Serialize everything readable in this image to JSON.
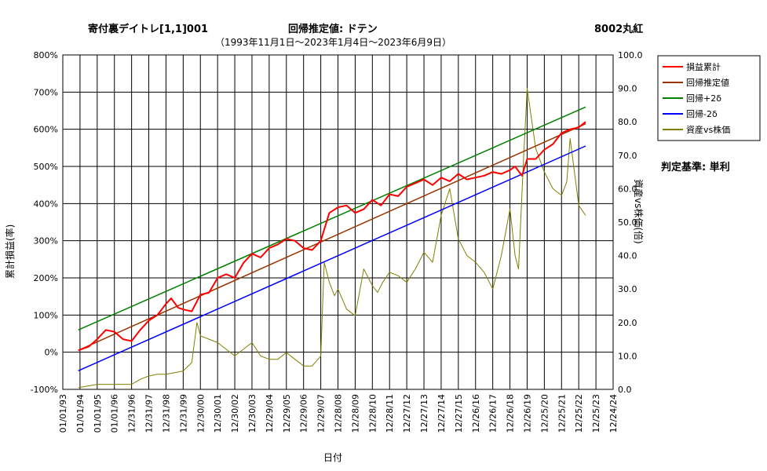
{
  "header": {
    "title_left": "寄付裏デイトレ[1,1]001",
    "title_mid": "回帰推定値: ドテン",
    "title_right": "8002丸紅",
    "subtitle": "（1993年11月1日〜2023年1月4日〜2023年6月9日）",
    "criteria": "判定基準: 単利"
  },
  "chart_data": {
    "type": "line",
    "xlabel": "日付",
    "ylabel_left": "累計損益(率)",
    "ylabel_right": "資産vs株価(倍)",
    "y_left_range": [
      -100,
      800
    ],
    "y_right_range": [
      0,
      100
    ],
    "y_left_ticks": [
      "800%",
      "700%",
      "600%",
      "500%",
      "400%",
      "300%",
      "200%",
      "100%",
      "0%",
      "-100%"
    ],
    "y_right_ticks": [
      "100.0",
      "90.0",
      "80.0",
      "70.0",
      "60.0",
      "50.0",
      "40.0",
      "30.0",
      "20.0",
      "10.0",
      "0.0"
    ],
    "x_ticks": [
      "01/01/93",
      "01/01/94",
      "01/01/95",
      "01/01/96",
      "12/31/96",
      "12/31/97",
      "12/31/98",
      "12/31/99",
      "12/30/00",
      "12/30/01",
      "12/30/02",
      "12/30/03",
      "12/29/04",
      "12/29/05",
      "12/29/06",
      "12/29/07",
      "12/28/08",
      "12/28/09",
      "12/28/10",
      "12/28/11",
      "12/27/12",
      "12/27/13",
      "12/27/14",
      "12/27/15",
      "12/26/16",
      "12/26/17",
      "12/26/18",
      "12/26/19",
      "12/25/20",
      "12/25/21",
      "12/25/22",
      "12/25/23",
      "12/24/24"
    ],
    "legend": {
      "position": "right",
      "items": [
        {
          "name": "損益累計",
          "color": "#ff0000"
        },
        {
          "name": "回帰推定値",
          "color": "#993300"
        },
        {
          "name": "回帰+2δ",
          "color": "#008000"
        },
        {
          "name": "回帰-2δ",
          "color": "#0000ff"
        },
        {
          "name": "資産vs株価",
          "color": "#808000"
        }
      ]
    },
    "grid": true,
    "series": [
      {
        "name": "損益累計",
        "axis": "left",
        "color": "#ff0000",
        "x": [
          1993.9,
          1994.5,
          1995.0,
          1995.5,
          1996.0,
          1996.5,
          1997.0,
          1997.5,
          1998.0,
          1998.5,
          1999.0,
          1999.3,
          1999.7,
          2000.0,
          2000.5,
          2001.0,
          2001.5,
          2002.0,
          2002.5,
          2003.0,
          2003.5,
          2004.0,
          2004.5,
          2005.0,
          2005.5,
          2006.0,
          2006.5,
          2007.0,
          2007.5,
          2008.0,
          2008.5,
          2009.0,
          2009.5,
          2010.0,
          2010.5,
          2011.0,
          2011.5,
          2012.0,
          2012.5,
          2013.0,
          2013.5,
          2014.0,
          2014.5,
          2015.0,
          2015.5,
          2016.0,
          2016.5,
          2017.0,
          2017.5,
          2018.0,
          2018.5,
          2019.0,
          2019.3,
          2019.7,
          2020.0,
          2020.5,
          2021.0,
          2021.5,
          2022.0,
          2022.5,
          2023.0,
          2023.4
        ],
        "y": [
          5,
          15,
          35,
          60,
          55,
          35,
          30,
          60,
          85,
          100,
          130,
          145,
          120,
          115,
          110,
          155,
          160,
          200,
          210,
          200,
          240,
          265,
          255,
          280,
          290,
          305,
          300,
          280,
          275,
          300,
          375,
          390,
          395,
          375,
          385,
          410,
          395,
          425,
          420,
          445,
          455,
          465,
          450,
          470,
          460,
          480,
          465,
          470,
          475,
          485,
          480,
          490,
          500,
          475,
          520,
          520,
          545,
          560,
          590,
          600,
          605,
          620
        ]
      },
      {
        "name": "回帰推定値",
        "axis": "left",
        "color": "#993300",
        "x": [
          1993.9,
          2023.4
        ],
        "y": [
          5,
          615
        ]
      },
      {
        "name": "回帰+2δ",
        "axis": "left",
        "color": "#008000",
        "x": [
          1993.9,
          2023.4
        ],
        "y": [
          60,
          660
        ]
      },
      {
        "name": "回帰-2δ",
        "axis": "left",
        "color": "#0000ff",
        "x": [
          1993.9,
          2023.4
        ],
        "y": [
          -50,
          555
        ]
      },
      {
        "name": "資産vs株価",
        "axis": "right",
        "color": "#808000",
        "x": [
          1993.9,
          1995.0,
          1996.0,
          1997.0,
          1997.5,
          1998.0,
          1998.5,
          1999.0,
          1999.5,
          2000.0,
          2000.5,
          2000.8,
          2001.0,
          2001.5,
          2002.0,
          2002.5,
          2003.0,
          2003.5,
          2004.0,
          2004.5,
          2005.0,
          2005.5,
          2006.0,
          2006.5,
          2007.0,
          2007.5,
          2008.0,
          2008.2,
          2008.5,
          2008.8,
          2009.0,
          2009.5,
          2010.0,
          2010.5,
          2011.0,
          2011.3,
          2011.6,
          2012.0,
          2012.5,
          2013.0,
          2013.5,
          2014.0,
          2014.5,
          2015.0,
          2015.5,
          2016.0,
          2016.5,
          2017.0,
          2017.5,
          2018.0,
          2018.5,
          2019.0,
          2019.3,
          2019.5,
          2019.8,
          2020.0,
          2020.5,
          2021.0,
          2021.5,
          2022.0,
          2022.3,
          2022.5,
          2023.0,
          2023.4
        ],
        "y": [
          0.5,
          1.5,
          1.5,
          1.5,
          3.0,
          4.0,
          4.5,
          4.5,
          5.0,
          5.5,
          8.0,
          20.0,
          16.0,
          15.0,
          14.0,
          12.0,
          10.0,
          12.0,
          14.0,
          10.0,
          9.0,
          9.0,
          11.0,
          9.0,
          7.0,
          7.0,
          10.0,
          38.0,
          32.0,
          28.0,
          30.0,
          24.0,
          22.0,
          36.0,
          31.0,
          29.0,
          32.0,
          35.0,
          34.0,
          32.0,
          36.0,
          41.0,
          38.0,
          52.0,
          60.0,
          45.0,
          40.0,
          38.0,
          35.0,
          30.0,
          40.0,
          54.0,
          40.0,
          36.0,
          70.0,
          90.0,
          72.0,
          65.0,
          60.0,
          58.0,
          62.0,
          75.0,
          55.0,
          52.0
        ]
      }
    ]
  }
}
